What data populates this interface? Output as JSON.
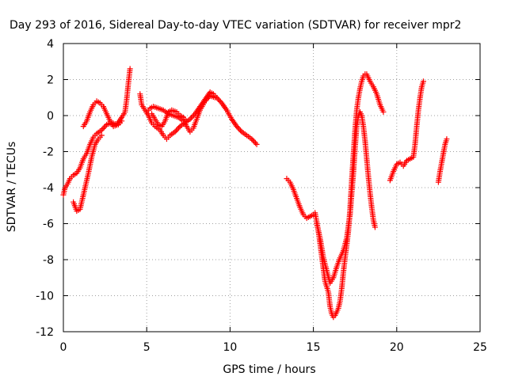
{
  "chart_data": {
    "type": "scatter",
    "title": "Day 293 of 2016, Sidereal Day-to-day VTEC variation (SDTVAR) for receiver mpr2",
    "xlabel": "GPS time / hours",
    "ylabel": "SDTVAR / TECUs",
    "xlim": [
      0,
      25
    ],
    "ylim": [
      -12,
      4
    ],
    "xticks": [
      "0",
      "5",
      "10",
      "15",
      "20",
      "25"
    ],
    "yticks": [
      "-12",
      "-10",
      "-8",
      "-6",
      "-4",
      "-2",
      "0",
      "2",
      "4"
    ],
    "grid": true,
    "marker": "+",
    "color": "#ff0000",
    "series": [
      {
        "points": [
          [
            0.0,
            -4.4
          ],
          [
            0.1,
            -4.0
          ],
          [
            0.25,
            -3.8
          ],
          [
            0.4,
            -3.5
          ],
          [
            0.6,
            -3.3
          ],
          [
            0.8,
            -3.2
          ],
          [
            1.0,
            -2.9
          ],
          [
            1.2,
            -2.4
          ],
          [
            1.4,
            -2.1
          ],
          [
            1.6,
            -1.6
          ],
          [
            1.8,
            -1.2
          ],
          [
            2.0,
            -1.0
          ],
          [
            2.3,
            -0.8
          ],
          [
            2.6,
            -0.5
          ],
          [
            2.9,
            -0.4
          ],
          [
            3.2,
            -0.5
          ],
          [
            3.5,
            -0.1
          ],
          [
            3.7,
            0.2
          ],
          [
            3.8,
            0.9
          ],
          [
            3.9,
            1.8
          ],
          [
            4.0,
            2.6
          ]
        ]
      },
      {
        "points": [
          [
            0.6,
            -4.8
          ],
          [
            0.8,
            -5.3
          ],
          [
            1.0,
            -5.2
          ],
          [
            1.1,
            -4.8
          ],
          [
            1.3,
            -4.0
          ],
          [
            1.5,
            -3.2
          ],
          [
            1.7,
            -2.3
          ],
          [
            1.9,
            -1.6
          ],
          [
            2.1,
            -1.3
          ],
          [
            2.3,
            -1.1
          ]
        ]
      },
      {
        "points": [
          [
            1.2,
            -0.6
          ],
          [
            1.4,
            -0.3
          ],
          [
            1.6,
            0.2
          ],
          [
            1.8,
            0.6
          ],
          [
            2.0,
            0.8
          ],
          [
            2.2,
            0.7
          ],
          [
            2.4,
            0.5
          ],
          [
            2.6,
            0.1
          ],
          [
            2.8,
            -0.3
          ],
          [
            3.0,
            -0.6
          ],
          [
            3.3,
            -0.5
          ],
          [
            3.5,
            -0.3
          ]
        ]
      },
      {
        "points": [
          [
            4.6,
            1.2
          ],
          [
            4.7,
            0.6
          ],
          [
            4.9,
            0.3
          ],
          [
            5.1,
            0.0
          ],
          [
            5.3,
            -0.4
          ],
          [
            5.5,
            -0.6
          ],
          [
            5.8,
            -0.8
          ],
          [
            6.0,
            -1.1
          ],
          [
            6.2,
            -1.3
          ],
          [
            6.4,
            -1.1
          ],
          [
            6.7,
            -0.9
          ],
          [
            7.0,
            -0.6
          ],
          [
            7.3,
            -0.4
          ],
          [
            7.6,
            -0.2
          ],
          [
            7.9,
            0.1
          ],
          [
            8.2,
            0.5
          ],
          [
            8.5,
            0.9
          ],
          [
            8.8,
            1.3
          ],
          [
            9.0,
            1.2
          ],
          [
            9.2,
            1.0
          ],
          [
            9.5,
            0.7
          ],
          [
            9.8,
            0.3
          ],
          [
            10.1,
            -0.2
          ],
          [
            10.4,
            -0.6
          ],
          [
            10.7,
            -0.9
          ],
          [
            11.0,
            -1.1
          ],
          [
            11.3,
            -1.3
          ],
          [
            11.6,
            -1.6
          ]
        ]
      },
      {
        "points": [
          [
            5.0,
            0.2
          ],
          [
            5.2,
            0.4
          ],
          [
            5.4,
            0.5
          ],
          [
            5.7,
            0.4
          ],
          [
            6.0,
            0.3
          ],
          [
            6.3,
            0.1
          ],
          [
            6.6,
            0.0
          ],
          [
            6.9,
            -0.1
          ],
          [
            7.2,
            -0.3
          ],
          [
            7.4,
            -0.6
          ],
          [
            7.6,
            -0.9
          ],
          [
            7.8,
            -0.7
          ],
          [
            8.0,
            -0.2
          ],
          [
            8.2,
            0.3
          ],
          [
            8.5,
            0.8
          ],
          [
            8.8,
            1.1
          ],
          [
            9.1,
            1.0
          ]
        ]
      },
      {
        "points": [
          [
            5.3,
            0.1
          ],
          [
            5.5,
            -0.2
          ],
          [
            5.7,
            -0.5
          ],
          [
            5.9,
            -0.6
          ],
          [
            6.1,
            -0.3
          ],
          [
            6.3,
            0.2
          ],
          [
            6.5,
            0.3
          ],
          [
            6.8,
            0.2
          ],
          [
            7.0,
            0.0
          ],
          [
            7.2,
            -0.1
          ],
          [
            7.4,
            -0.3
          ]
        ]
      },
      {
        "points": [
          [
            13.4,
            -3.5
          ],
          [
            13.6,
            -3.7
          ],
          [
            13.8,
            -4.1
          ],
          [
            14.0,
            -4.6
          ],
          [
            14.2,
            -5.1
          ],
          [
            14.4,
            -5.5
          ],
          [
            14.6,
            -5.7
          ],
          [
            14.8,
            -5.6
          ],
          [
            15.0,
            -5.5
          ],
          [
            15.1,
            -5.4
          ],
          [
            15.2,
            -5.9
          ],
          [
            15.3,
            -6.4
          ],
          [
            15.4,
            -7.1
          ],
          [
            15.5,
            -7.8
          ],
          [
            15.6,
            -8.5
          ],
          [
            15.7,
            -9.2
          ],
          [
            15.8,
            -9.5
          ],
          [
            15.9,
            -9.8
          ],
          [
            16.0,
            -10.6
          ],
          [
            16.1,
            -11.0
          ],
          [
            16.2,
            -11.2
          ],
          [
            16.3,
            -11.1
          ],
          [
            16.4,
            -10.9
          ],
          [
            16.5,
            -10.7
          ],
          [
            16.6,
            -10.3
          ],
          [
            16.7,
            -9.6
          ],
          [
            16.8,
            -8.7
          ],
          [
            16.9,
            -7.9
          ],
          [
            17.0,
            -7.2
          ],
          [
            17.1,
            -6.4
          ],
          [
            17.2,
            -5.2
          ],
          [
            17.3,
            -3.6
          ],
          [
            17.4,
            -2.2
          ],
          [
            17.5,
            -0.8
          ],
          [
            17.6,
            0.3
          ],
          [
            17.7,
            1.0
          ],
          [
            17.8,
            1.5
          ],
          [
            17.9,
            1.9
          ],
          [
            18.0,
            2.2
          ],
          [
            18.1,
            2.3
          ],
          [
            18.2,
            2.3
          ],
          [
            18.4,
            1.9
          ],
          [
            18.6,
            1.6
          ],
          [
            18.8,
            1.2
          ],
          [
            19.0,
            0.6
          ],
          [
            19.2,
            0.2
          ]
        ]
      },
      {
        "points": [
          [
            15.2,
            -6.0
          ],
          [
            15.4,
            -6.8
          ],
          [
            15.6,
            -7.9
          ],
          [
            15.8,
            -8.6
          ],
          [
            16.0,
            -9.3
          ],
          [
            16.2,
            -9.0
          ],
          [
            16.4,
            -8.4
          ],
          [
            16.6,
            -7.9
          ],
          [
            16.8,
            -7.5
          ],
          [
            17.0,
            -6.8
          ],
          [
            17.2,
            -5.5
          ],
          [
            17.3,
            -4.3
          ],
          [
            17.4,
            -3.2
          ],
          [
            17.5,
            -1.8
          ],
          [
            17.6,
            -0.6
          ],
          [
            17.7,
            0.0
          ],
          [
            17.8,
            0.2
          ],
          [
            17.9,
            0.0
          ],
          [
            18.0,
            -0.6
          ],
          [
            18.1,
            -1.4
          ],
          [
            18.2,
            -2.4
          ],
          [
            18.3,
            -3.4
          ],
          [
            18.4,
            -4.3
          ],
          [
            18.5,
            -5.1
          ],
          [
            18.6,
            -5.8
          ],
          [
            18.7,
            -6.2
          ]
        ]
      },
      {
        "points": [
          [
            19.6,
            -3.6
          ],
          [
            19.8,
            -3.1
          ],
          [
            20.0,
            -2.7
          ],
          [
            20.2,
            -2.6
          ],
          [
            20.4,
            -2.8
          ],
          [
            20.6,
            -2.5
          ],
          [
            20.8,
            -2.4
          ],
          [
            21.0,
            -2.3
          ],
          [
            21.1,
            -1.6
          ],
          [
            21.2,
            -0.6
          ],
          [
            21.3,
            0.3
          ],
          [
            21.4,
            1.0
          ],
          [
            21.5,
            1.6
          ],
          [
            21.6,
            1.9
          ]
        ]
      },
      {
        "points": [
          [
            22.5,
            -3.7
          ],
          [
            22.6,
            -3.1
          ],
          [
            22.7,
            -2.6
          ],
          [
            22.8,
            -2.1
          ],
          [
            22.9,
            -1.6
          ],
          [
            23.0,
            -1.3
          ]
        ]
      }
    ]
  }
}
